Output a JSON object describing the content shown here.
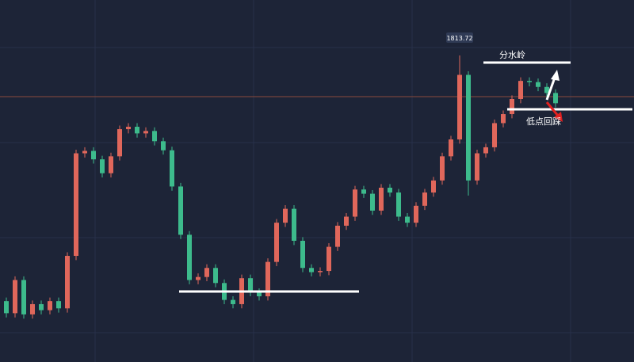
{
  "chart_data": {
    "type": "candlestick",
    "up_color": "#e0675b",
    "down_color": "#3dbb8c",
    "ylim": [
      1762.91,
      1822.91
    ],
    "open": [
      1773.0,
      1771.0,
      1776.5,
      1770.8,
      1772.5,
      1771.5,
      1773.0,
      1771.8,
      1780.5,
      1797.5,
      1797.9,
      1796.5,
      1794.2,
      1797.0,
      1801.5,
      1801.9,
      1800.8,
      1801.2,
      1799.5,
      1798.0,
      1792.0,
      1784.0,
      1776.5,
      1777.0,
      1778.5,
      1776.0,
      1773.2,
      1772.5,
      1776.8,
      1774.5,
      1773.8,
      1779.5,
      1786.0,
      1788.3,
      1783.0,
      1778.5,
      1777.8,
      1778.0,
      1782.0,
      1785.5,
      1787.0,
      1791.5,
      1790.8,
      1788.0,
      1791.8,
      1791.0,
      1787.0,
      1786.0,
      1788.8,
      1791.0,
      1793.0,
      1797.0,
      1799.8,
      1810.5,
      1793.0,
      1797.5,
      1798.5,
      1802.5,
      1804.0,
      1806.5,
      1809.5,
      1809.3,
      1808.5,
      1807.5
    ],
    "high": [
      1773.6,
      1777.1,
      1777.1,
      1773.1,
      1773.1,
      1773.6,
      1773.6,
      1781.1,
      1798.1,
      1798.5,
      1798.5,
      1797.1,
      1797.6,
      1802.1,
      1802.5,
      1802.5,
      1801.8,
      1801.8,
      1800.1,
      1798.6,
      1792.6,
      1784.6,
      1777.6,
      1779.1,
      1779.1,
      1776.6,
      1773.8,
      1777.4,
      1777.4,
      1775.1,
      1780.1,
      1786.6,
      1788.9,
      1788.9,
      1783.6,
      1779.1,
      1778.6,
      1782.6,
      1786.1,
      1787.6,
      1792.1,
      1792.1,
      1791.4,
      1792.4,
      1792.4,
      1791.6,
      1787.6,
      1789.4,
      1791.6,
      1793.6,
      1797.6,
      1800.4,
      1813.72,
      1811.1,
      1798.1,
      1799.1,
      1803.1,
      1804.6,
      1807.1,
      1810.1,
      1810.1,
      1809.9,
      1809.1,
      1808.1
    ],
    "low": [
      1770.3,
      1770.3,
      1770.1,
      1770.1,
      1770.8,
      1770.8,
      1771.1,
      1771.1,
      1779.8,
      1796.8,
      1795.8,
      1793.5,
      1793.5,
      1796.3,
      1800.8,
      1800.1,
      1800.1,
      1798.8,
      1797.3,
      1791.3,
      1783.3,
      1775.8,
      1775.8,
      1776.3,
      1775.3,
      1772.5,
      1771.8,
      1771.8,
      1773.8,
      1773.1,
      1773.1,
      1778.8,
      1785.3,
      1782.3,
      1777.8,
      1777.1,
      1777.1,
      1777.3,
      1781.3,
      1784.8,
      1786.3,
      1790.1,
      1787.3,
      1787.3,
      1790.3,
      1786.3,
      1785.3,
      1785.3,
      1788.1,
      1790.3,
      1792.3,
      1796.3,
      1799.1,
      1790.5,
      1792.3,
      1796.8,
      1797.8,
      1801.8,
      1803.3,
      1805.8,
      1808.6,
      1807.8,
      1806.8,
      1805.1
    ],
    "close": [
      1771.0,
      1776.5,
      1770.8,
      1772.5,
      1771.5,
      1773.0,
      1771.8,
      1780.5,
      1797.5,
      1797.9,
      1796.5,
      1794.2,
      1797.0,
      1801.5,
      1801.9,
      1800.8,
      1801.2,
      1799.5,
      1798.0,
      1792.0,
      1784.0,
      1776.5,
      1777.0,
      1778.5,
      1776.0,
      1773.2,
      1772.5,
      1776.8,
      1774.5,
      1773.8,
      1779.5,
      1786.0,
      1788.3,
      1783.0,
      1778.5,
      1777.8,
      1778.0,
      1782.0,
      1785.5,
      1787.0,
      1791.5,
      1790.8,
      1788.0,
      1791.8,
      1791.0,
      1787.0,
      1786.0,
      1788.8,
      1791.0,
      1793.0,
      1797.0,
      1799.8,
      1810.5,
      1793.0,
      1797.5,
      1798.5,
      1802.5,
      1804.0,
      1806.5,
      1809.5,
      1809.3,
      1808.5,
      1807.5,
      1805.8
    ],
    "annotations": [
      "分水岭",
      "低点回踩"
    ]
  }
}
